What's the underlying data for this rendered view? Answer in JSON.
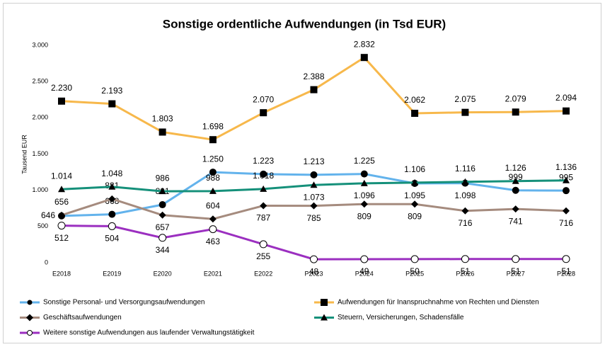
{
  "chart_data": {
    "type": "line",
    "title": "Sonstige ordentliche Aufwendungen (in Tsd EUR)",
    "y_label": "Tausend EUR",
    "categories": [
      "E2018",
      "E2019",
      "E2020",
      "E2021",
      "E2022",
      "P2023",
      "P2024",
      "P2025",
      "P2026",
      "P2027",
      "P2028"
    ],
    "ylim": [
      0,
      3000
    ],
    "yticks": [
      0,
      500,
      {
        "value": 1000,
        "label": "1.000"
      },
      {
        "value": 1500,
        "label": "1.500"
      },
      {
        "value": 2000,
        "label": "2.000"
      },
      {
        "value": 2500,
        "label": "2.500"
      },
      {
        "value": 3000,
        "label": "3.000"
      }
    ],
    "grid": false,
    "series": [
      {
        "name": "Sonstige Personal- und Versorgungsaufwendungen",
        "color": "#63b3ec",
        "marker": "circle",
        "values": [
          646,
          668,
          801,
          1250,
          1223,
          1213,
          1225,
          1095,
          1098,
          999,
          995
        ],
        "value_labels": [
          "646",
          "668",
          "801",
          "1.250",
          "1.223",
          "1.213",
          "1.225",
          "1.095",
          "1.098",
          "999",
          "995"
        ]
      },
      {
        "name": "Aufwendungen für Inanspruchnahme von Rechten und Diensten",
        "color": "#f7b84b",
        "marker": "square",
        "values": [
          2230,
          2193,
          1803,
          1698,
          2070,
          2388,
          2832,
          2062,
          2075,
          2079,
          2094
        ],
        "value_labels": [
          "2.230",
          "2.193",
          "1.803",
          "1.698",
          "2.070",
          "2.388",
          "2.832",
          "2.062",
          "2.075",
          "2.079",
          "2.094"
        ]
      },
      {
        "name": "Geschäftsaufwendungen",
        "color": "#a58b7e",
        "marker": "diamond",
        "values": [
          656,
          881,
          657,
          604,
          787,
          785,
          809,
          809,
          716,
          741,
          716
        ],
        "value_labels": [
          "656",
          "881",
          "657",
          "604",
          "787",
          "785",
          "809",
          "809",
          "716",
          "741",
          "716"
        ]
      },
      {
        "name": "Steuern, Versicherungen, Schadensfälle",
        "color": "#15907a",
        "marker": "triangle",
        "values": [
          1014,
          1048,
          986,
          988,
          1018,
          1073,
          1096,
          1106,
          1116,
          1126,
          1136
        ],
        "value_labels": [
          "1.014",
          "1.048",
          "986",
          "988",
          "1.018",
          "1.073",
          "1.096",
          "1.106",
          "1.116",
          "1.126",
          "1.136"
        ]
      },
      {
        "name": "Weitere sonstige Aufwendungen aus laufender Verwaltungstätigkeit",
        "color": "#9b2fc0",
        "marker": "open-circle",
        "values": [
          512,
          504,
          344,
          463,
          255,
          48,
          49,
          50,
          51,
          51,
          51
        ],
        "value_labels": [
          "512",
          "504",
          "344",
          "463",
          "255",
          "48",
          "49",
          "50",
          "51",
          "51",
          "51"
        ]
      }
    ]
  }
}
